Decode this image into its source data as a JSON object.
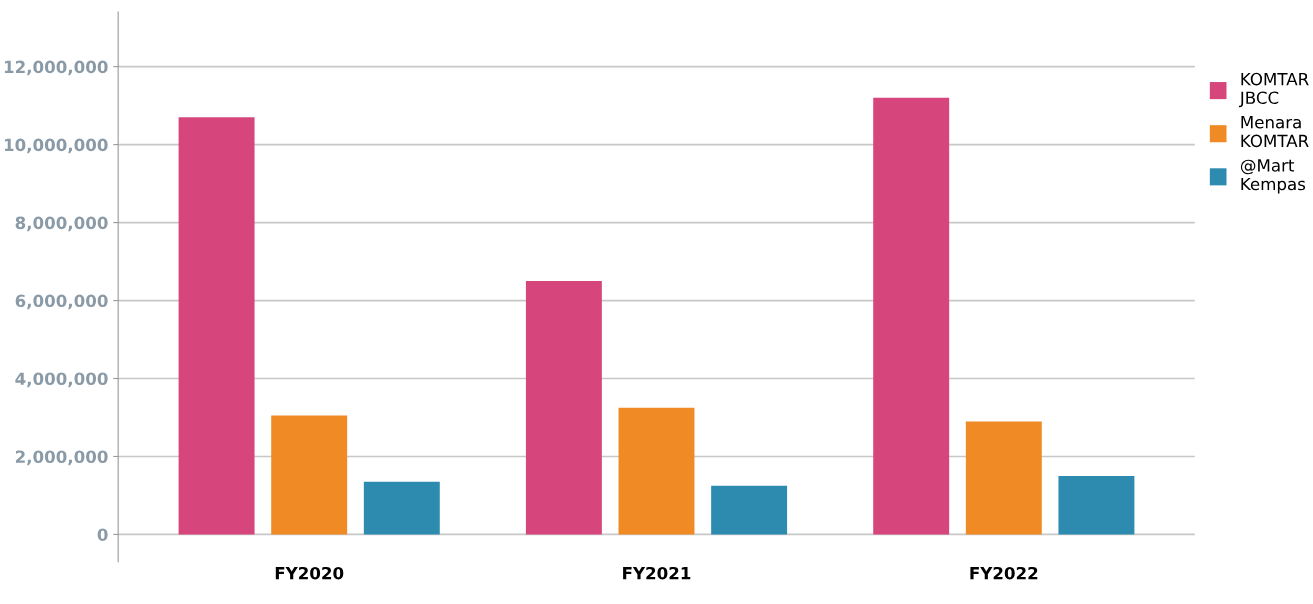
{
  "chart_data": {
    "type": "bar",
    "categories": [
      "FY2020",
      "FY2021",
      "FY2022"
    ],
    "series": [
      {
        "name": "KOMTAR\nJBCC",
        "color": "#d6457b",
        "values": [
          10700000,
          6500000,
          11200000
        ]
      },
      {
        "name": "Menara\nKOMTAR",
        "color": "#f08a24",
        "values": [
          3050000,
          3250000,
          2900000
        ]
      },
      {
        "name": "@Mart\nKempas",
        "color": "#2e8bb0",
        "values": [
          1350000,
          1250000,
          1500000
        ]
      }
    ],
    "ylim": [
      -700000,
      13400000
    ],
    "yticks": [
      {
        "value": 0,
        "label": "0"
      },
      {
        "value": 2000000,
        "label": "2,000,000"
      },
      {
        "value": 4000000,
        "label": "4,000,000"
      },
      {
        "value": 6000000,
        "label": "6,000,000"
      },
      {
        "value": 8000000,
        "label": "8,000,000"
      },
      {
        "value": 10000000,
        "label": "10,000,000"
      },
      {
        "value": 12000000,
        "label": "12,000,000"
      }
    ],
    "grid": "y",
    "legend": "right"
  }
}
